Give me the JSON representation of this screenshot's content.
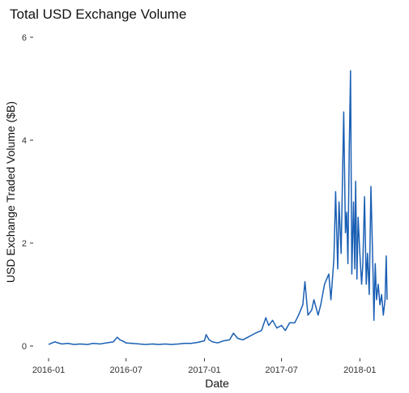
{
  "chart_data": {
    "type": "line",
    "title": "Total USD Exchange Volume",
    "xlabel": "Date",
    "ylabel": "USD Exchange Traded Volume ($B)",
    "x_ticks": [
      "2016-01",
      "2016-07",
      "2017-01",
      "2017-07",
      "2018-01"
    ],
    "y_ticks": [
      "0",
      "2",
      "4",
      "6"
    ],
    "xlim": [
      "2016-01-01",
      "2018-03-06"
    ],
    "ylim": [
      0,
      6
    ],
    "grid": false,
    "legend": "none",
    "line_color": "#1a5fb4",
    "series": [
      {
        "x": [
          "2016-01-01",
          "2016-01-15",
          "2016-02-01",
          "2016-02-15",
          "2016-03-01",
          "2016-03-15",
          "2016-04-01",
          "2016-04-15",
          "2016-05-01",
          "2016-05-15",
          "2016-06-01",
          "2016-06-10",
          "2016-06-17",
          "2016-06-25",
          "2016-07-01",
          "2016-07-15",
          "2016-08-01",
          "2016-08-15",
          "2016-09-01",
          "2016-09-15",
          "2016-10-01",
          "2016-10-15",
          "2016-11-01",
          "2016-11-15",
          "2016-12-01",
          "2016-12-15",
          "2017-01-01",
          "2017-01-05",
          "2017-01-12",
          "2017-01-20",
          "2017-02-01",
          "2017-02-15",
          "2017-03-01",
          "2017-03-10",
          "2017-03-20",
          "2017-04-01",
          "2017-04-15",
          "2017-05-01",
          "2017-05-15",
          "2017-05-25",
          "2017-06-01",
          "2017-06-10",
          "2017-06-20",
          "2017-07-01",
          "2017-07-10",
          "2017-07-20",
          "2017-08-01",
          "2017-08-10",
          "2017-08-20",
          "2017-08-25",
          "2017-09-01",
          "2017-09-10",
          "2017-09-15",
          "2017-09-25",
          "2017-10-01",
          "2017-10-10",
          "2017-10-20",
          "2017-10-25",
          "2017-11-01",
          "2017-11-05",
          "2017-11-10",
          "2017-11-13",
          "2017-11-18",
          "2017-11-24",
          "2017-11-28",
          "2017-12-01",
          "2017-12-04",
          "2017-12-07",
          "2017-12-10",
          "2017-12-13",
          "2017-12-17",
          "2017-12-20",
          "2017-12-22",
          "2017-12-25",
          "2017-12-28",
          "2018-01-01",
          "2018-01-05",
          "2018-01-08",
          "2018-01-12",
          "2018-01-16",
          "2018-01-19",
          "2018-01-23",
          "2018-01-27",
          "2018-02-01",
          "2018-02-03",
          "2018-02-06",
          "2018-02-09",
          "2018-02-13",
          "2018-02-17",
          "2018-02-21",
          "2018-02-25",
          "2018-03-01",
          "2018-03-04",
          "2018-03-06"
        ],
        "y": [
          0.03,
          0.08,
          0.04,
          0.05,
          0.03,
          0.04,
          0.03,
          0.05,
          0.04,
          0.06,
          0.08,
          0.17,
          0.12,
          0.09,
          0.06,
          0.05,
          0.04,
          0.03,
          0.04,
          0.03,
          0.04,
          0.03,
          0.04,
          0.05,
          0.05,
          0.07,
          0.1,
          0.22,
          0.12,
          0.08,
          0.06,
          0.1,
          0.12,
          0.25,
          0.15,
          0.12,
          0.18,
          0.25,
          0.3,
          0.55,
          0.4,
          0.5,
          0.35,
          0.4,
          0.3,
          0.45,
          0.45,
          0.6,
          0.8,
          1.25,
          0.6,
          0.7,
          0.9,
          0.6,
          0.8,
          1.2,
          1.4,
          0.9,
          1.7,
          3.0,
          1.5,
          2.8,
          1.8,
          4.55,
          2.2,
          2.6,
          1.6,
          3.8,
          5.35,
          1.4,
          2.8,
          1.5,
          3.2,
          1.3,
          2.5,
          1.8,
          1.2,
          1.6,
          2.9,
          1.2,
          1.8,
          1.0,
          3.1,
          1.4,
          0.5,
          1.6,
          0.9,
          1.2,
          0.8,
          1.0,
          0.6,
          0.9,
          1.75,
          0.9
        ]
      }
    ]
  }
}
